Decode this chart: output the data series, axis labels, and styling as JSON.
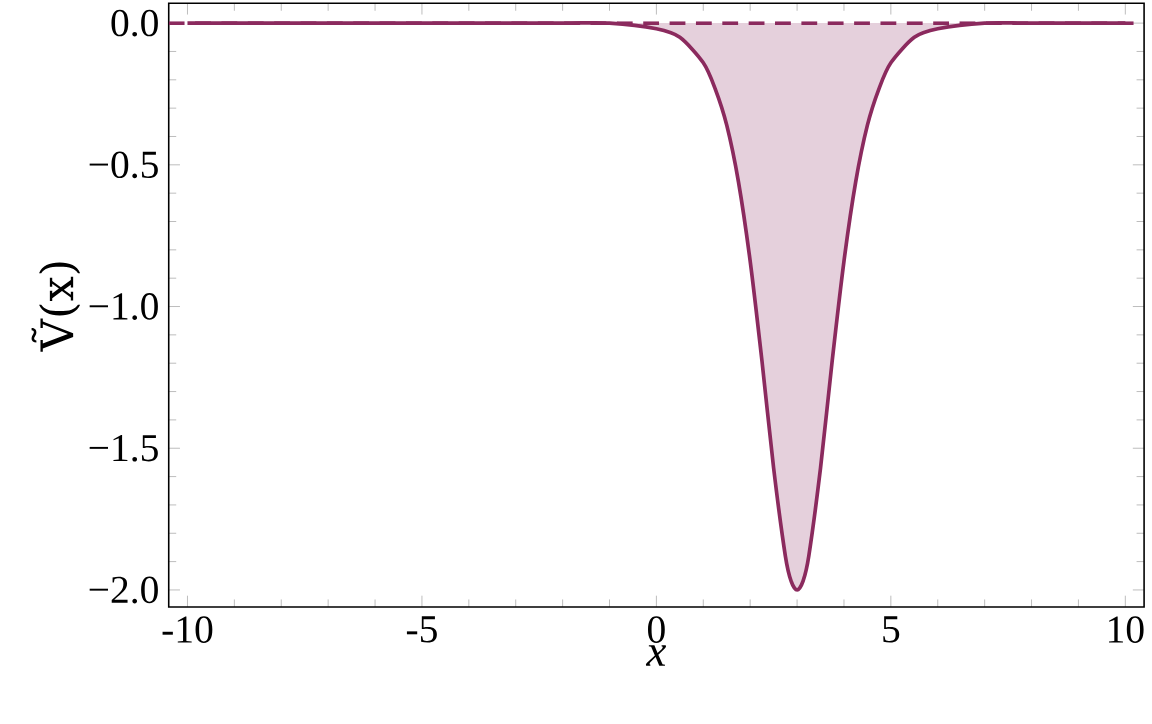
{
  "chart_data": {
    "type": "area",
    "xlabel": "x",
    "ylabel": "Ṽ(x)",
    "x": [
      -10,
      -8,
      -6,
      -4,
      -2,
      -1,
      0,
      0.5,
      1,
      1.25,
      1.5,
      1.75,
      2,
      2.25,
      2.5,
      2.75,
      2.875,
      3,
      3.125,
      3.25,
      3.5,
      3.75,
      4,
      4.25,
      4.5,
      4.75,
      5,
      5.5,
      6,
      7,
      8,
      10
    ],
    "series": [
      {
        "color": "#8b2a5e",
        "values": [
          0,
          0,
          0,
          0,
          0,
          0,
          -0.02,
          -0.05,
          -0.14,
          -0.23,
          -0.36,
          -0.56,
          -0.84,
          -1.19,
          -1.57,
          -1.88,
          -1.97,
          -2,
          -1.97,
          -1.88,
          -1.57,
          -1.19,
          -0.84,
          -0.56,
          -0.36,
          -0.23,
          -0.14,
          -0.05,
          -0.02,
          0,
          0,
          0
        ]
      }
    ],
    "xlim": [
      -10.4,
      10.4
    ],
    "ylim": [
      -2.06,
      0.07
    ],
    "xticks": [
      -10,
      -5,
      0,
      5,
      10
    ],
    "yticks": [
      {
        "value": 0,
        "label": "0.0"
      },
      {
        "value": -0.5,
        "label": "−0.5"
      },
      {
        "value": -1,
        "label": "−1.0"
      },
      {
        "value": -1.5,
        "label": "−1.5"
      },
      {
        "value": -2,
        "label": "−2.0"
      }
    ],
    "ref_lines": [
      {
        "axis": "y",
        "value": 0,
        "line_style": "dashed",
        "color": "#8b2a5e"
      }
    ],
    "grid": false
  }
}
